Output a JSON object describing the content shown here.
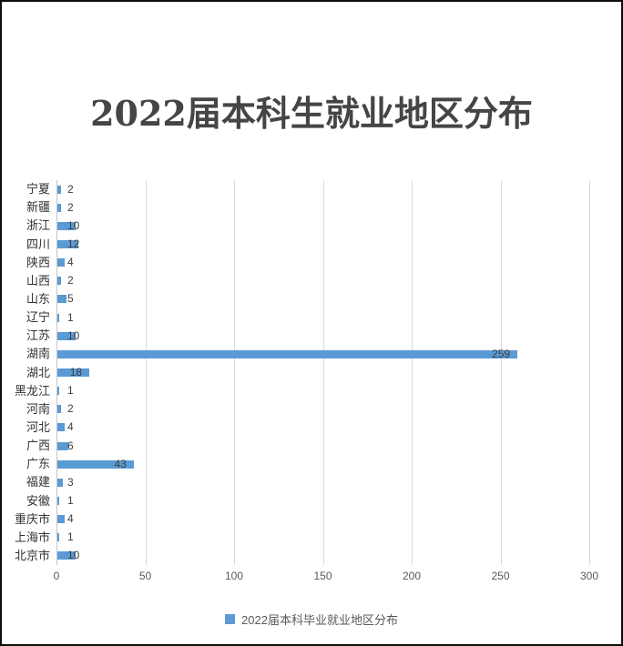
{
  "title": "2022届本科生就业地区分布",
  "legend": {
    "label": "2022届本科毕业就业地区分布"
  },
  "colors": {
    "bar": "#5B9BD5",
    "gridline": "#D9D9D9",
    "axis_line": "#C6C6C6",
    "title_text": "#454545",
    "category_text": "#333333",
    "value_text": "#3D3D3D",
    "tick_text": "#595959",
    "legend_text": "#595959",
    "frame_border": "#0D0D0D",
    "background": "#FFFFFF"
  },
  "chart_data": {
    "type": "bar",
    "orientation": "horizontal",
    "title": "2022届本科生就业地区分布",
    "series_name": "2022届本科毕业就业地区分布",
    "categories": [
      "宁夏",
      "新疆",
      "浙江",
      "四川",
      "陕西",
      "山西",
      "山东",
      "辽宁",
      "江苏",
      "湖南",
      "湖北",
      "黑龙江",
      "河南",
      "河北",
      "广西",
      "广东",
      "福建",
      "安徽",
      "重庆市",
      "上海市",
      "北京市"
    ],
    "values": [
      2,
      2,
      10,
      12,
      4,
      2,
      5,
      1,
      10,
      259,
      18,
      1,
      2,
      4,
      6,
      43,
      3,
      1,
      4,
      1,
      10
    ],
    "xlim": [
      0,
      300
    ],
    "xticks": [
      0,
      50,
      100,
      150,
      200,
      250,
      300
    ],
    "grid": true,
    "legend_position": "bottom",
    "data_labels": true
  }
}
